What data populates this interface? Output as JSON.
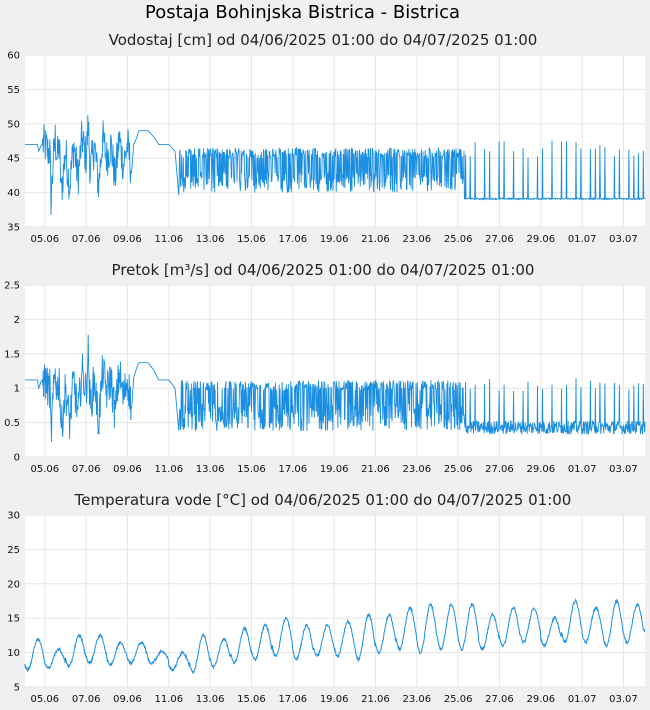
{
  "title": "Postaja Bohinjska Bistrica - Bistrica",
  "colors": {
    "line": "#1a8ee1",
    "plot_bg": "#ffffff",
    "page_bg": "#f0f0f0",
    "grid": "#e6e6e6"
  },
  "chart_data": [
    {
      "type": "line",
      "title": "Vodostaj [cm] od 04/06/2025 01:00 do 04/07/2025 01:00",
      "ylim": [
        35,
        60
      ],
      "yticks": [
        "35",
        "40",
        "45",
        "50",
        "55",
        "60"
      ],
      "xticks": [
        "05.06",
        "07.06",
        "09.06",
        "11.06",
        "13.06",
        "15.06",
        "17.06",
        "19.06",
        "21.06",
        "23.06",
        "25.06",
        "27.06",
        "29.06",
        "01.07",
        "03.07"
      ],
      "xlim": [
        4.0417,
        34.0417
      ],
      "series": [
        {
          "x": [
            4.0417,
            4.65,
            4.7,
            4.85,
            5.0,
            5.15,
            5.25,
            5.3,
            5.4,
            5.5,
            5.6,
            5.7,
            5.8,
            6.0,
            6.2,
            6.4,
            6.6,
            6.8,
            7.0,
            7.1,
            7.2,
            7.4,
            7.6,
            7.8,
            8.0,
            8.2,
            8.4,
            8.6,
            8.8,
            9.0,
            9.2,
            9.3,
            9.45,
            9.55,
            10.0,
            10.3,
            10.5,
            10.8,
            11.0,
            11.3,
            11.5,
            11.6,
            11.7,
            11.8,
            12.0,
            12.5,
            13.0,
            13.5,
            14.0,
            14.5,
            15.0,
            15.5,
            16.0,
            16.5,
            17.0,
            17.5,
            18.0,
            18.5,
            19.0,
            19.5,
            20.0,
            20.5,
            21.0,
            21.5,
            22.0,
            22.5,
            23.0,
            23.5,
            24.0,
            24.5,
            25.0,
            25.3,
            25.6,
            25.8,
            26.2,
            26.6,
            27.0,
            27.5,
            28.0,
            28.5,
            29.0,
            29.5,
            30.0,
            30.5,
            31.0,
            31.5,
            32.0,
            32.5,
            33.0,
            33.5,
            34.0
          ],
          "y": [
            47,
            47,
            46,
            47,
            47,
            46,
            46,
            39,
            44,
            48,
            45,
            47,
            40,
            46,
            41,
            47,
            42,
            48,
            45,
            50,
            43,
            47,
            41,
            48,
            45,
            47,
            42,
            48,
            44,
            47,
            43,
            47,
            48,
            49,
            49,
            48,
            47,
            47,
            47,
            46,
            39,
            46,
            42,
            47,
            40,
            46,
            40,
            46,
            42,
            46,
            40,
            46,
            41,
            45,
            40,
            45,
            40,
            44,
            40,
            44,
            39,
            44,
            39,
            44,
            39,
            44,
            39,
            44,
            39,
            45,
            39,
            45,
            39,
            40,
            39,
            40,
            39,
            39,
            39,
            39,
            39,
            39,
            39,
            39,
            39,
            39,
            39,
            39,
            39,
            39,
            39
          ],
          "note_peaks": "periodic peaks reaching ~46-48 cm"
        }
      ]
    },
    {
      "type": "line",
      "title": "Pretok [m³/s] od 04/06/2025 01:00 do 04/07/2025 01:00",
      "ylim": [
        0,
        2.5
      ],
      "yticks": [
        "0",
        "0.5",
        "1",
        "1.5",
        "2",
        "2.5"
      ],
      "xticks": [
        "05.06",
        "07.06",
        "09.06",
        "11.06",
        "13.06",
        "15.06",
        "17.06",
        "19.06",
        "21.06",
        "23.06",
        "25.06",
        "27.06",
        "29.06",
        "01.07",
        "03.07"
      ],
      "xlim": [
        4.0417,
        34.0417
      ],
      "series": [
        {
          "x": [
            4.0417,
            4.65,
            4.7,
            4.85,
            5.0,
            5.15,
            5.25,
            5.3,
            5.4,
            5.5,
            5.6,
            5.7,
            5.8,
            6.0,
            6.2,
            6.4,
            6.6,
            6.8,
            7.0,
            7.1,
            7.2,
            7.4,
            7.6,
            7.8,
            8.0,
            8.2,
            8.4,
            8.6,
            8.8,
            9.0,
            9.2,
            9.3,
            9.45,
            9.55,
            10.0,
            10.3,
            10.5,
            10.8,
            11.0,
            11.3,
            11.5,
            11.6,
            11.7,
            11.8,
            12.0,
            12.5,
            13.0,
            13.5,
            14.0,
            14.5,
            15.0,
            15.5,
            16.0,
            16.5,
            17.0,
            17.5,
            18.0,
            18.5,
            19.0,
            19.5,
            20.0,
            20.5,
            21.0,
            21.5,
            22.0,
            22.5,
            23.0,
            23.5,
            24.0,
            24.5,
            25.0,
            25.3,
            25.6,
            25.8,
            26.2,
            26.6,
            27.0,
            27.5,
            28.0,
            28.5,
            29.0,
            29.5,
            30.0,
            30.5,
            31.0,
            31.5,
            32.0,
            32.5,
            33.0,
            33.5,
            34.0
          ],
          "y": [
            1.12,
            1.12,
            1.0,
            1.12,
            1.12,
            1.0,
            1.0,
            0.32,
            0.8,
            1.25,
            0.95,
            1.15,
            0.4,
            1.0,
            0.5,
            1.12,
            0.6,
            1.25,
            0.95,
            1.52,
            0.7,
            1.15,
            0.5,
            1.25,
            0.95,
            1.15,
            0.6,
            1.25,
            0.85,
            1.15,
            0.7,
            1.15,
            1.3,
            1.37,
            1.37,
            1.25,
            1.12,
            1.12,
            1.12,
            1.0,
            0.32,
            1.0,
            0.6,
            1.12,
            0.4,
            1.0,
            0.4,
            1.0,
            0.6,
            1.0,
            0.4,
            1.0,
            0.5,
            0.9,
            0.4,
            0.9,
            0.4,
            0.85,
            0.4,
            0.85,
            0.35,
            0.85,
            0.35,
            0.85,
            0.35,
            0.85,
            0.35,
            0.85,
            0.35,
            0.9,
            0.35,
            0.9,
            0.35,
            0.4,
            0.33,
            0.4,
            0.33,
            0.33,
            0.33,
            0.33,
            0.33,
            0.33,
            0.33,
            0.33,
            0.33,
            0.33,
            0.33,
            0.33,
            0.33,
            0.33,
            0.33
          ]
        }
      ]
    },
    {
      "type": "line",
      "title": "Temperatura vode [°C] od 04/06/2025 01:00 do 04/07/2025 01:00",
      "ylim": [
        5,
        30
      ],
      "yticks": [
        "5",
        "10",
        "15",
        "20",
        "25",
        "30"
      ],
      "xticks": [
        "05.06",
        "07.06",
        "09.06",
        "11.06",
        "13.06",
        "15.06",
        "17.06",
        "19.06",
        "21.06",
        "23.06",
        "25.06",
        "27.06",
        "29.06",
        "01.07",
        "03.07"
      ],
      "xlim": [
        4.0417,
        34.0417
      ],
      "daily_min": [
        7.5,
        7.8,
        8.0,
        8.5,
        8.3,
        8.5,
        8.5,
        7.5,
        7.2,
        8.0,
        8.5,
        9.0,
        9.5,
        9.0,
        9.5,
        9.5,
        9.0,
        10.0,
        10.5,
        10.0,
        10.5,
        10.5,
        10.5,
        11.0,
        11.5,
        11.0,
        11.5,
        11.5,
        11.0,
        11.5,
        12.0
      ],
      "daily_max": [
        12.0,
        10.5,
        12.5,
        12.5,
        11.5,
        11.5,
        10.2,
        10.0,
        12.5,
        12.0,
        13.5,
        14.0,
        15.0,
        14.0,
        14.0,
        14.5,
        15.5,
        15.5,
        16.5,
        17.0,
        17.0,
        17.0,
        15.5,
        16.5,
        16.5,
        15.0,
        17.5,
        16.5,
        17.5,
        17.0,
        18.0
      ]
    }
  ]
}
